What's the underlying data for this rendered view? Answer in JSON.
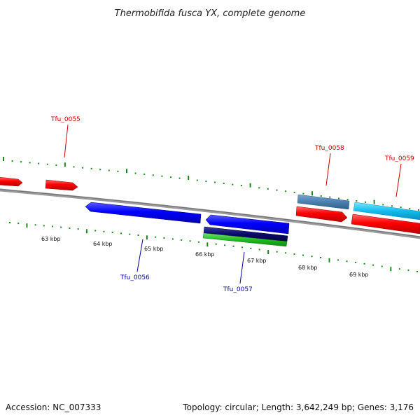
{
  "title": "Thermobifida fusca YX, complete genome",
  "footer": {
    "accession": "Accession: NC_007333",
    "summary": "Topology: circular; Length: 3,642,249 bp; Genes: 3,176"
  },
  "tick_labels": [
    "63 kbp",
    "64 kbp",
    "65 kbp",
    "66 kbp",
    "67 kbp",
    "68 kbp",
    "69 kbp"
  ],
  "gene_labels": {
    "tfu_0055": "Tfu_0055",
    "tfu_0056": "Tfu_0056",
    "tfu_0057": "Tfu_0057",
    "tfu_0058": "Tfu_0058",
    "tfu_0059": "Tfu_0059"
  },
  "colors": {
    "forward_cds": "#ff0000",
    "reverse_cds": "#0000ff",
    "backbone": "#808080",
    "ticks": "#1a8a1a",
    "label_red": "#cc0000",
    "label_blue": "#000099"
  }
}
